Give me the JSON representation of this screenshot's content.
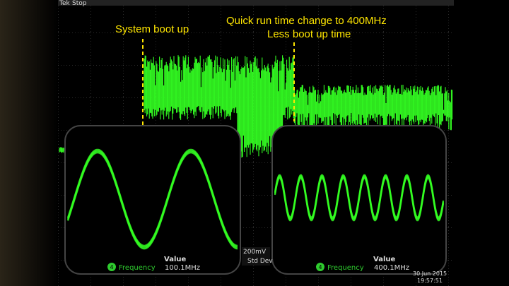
{
  "header": {
    "brand": "Tek",
    "status": "Stop"
  },
  "annotations": {
    "boot": "System boot up",
    "change": "Quick run time change to 400MHz",
    "less": "Less boot up time"
  },
  "insets": [
    {
      "heading": "Value",
      "channel": "4",
      "measure": "Frequency",
      "reading": "100.1MHz"
    },
    {
      "heading": "Value",
      "channel": "4",
      "measure": "Frequency",
      "reading": "400.1MHz"
    }
  ],
  "readouts": {
    "scale": "200mV",
    "stat": "Std Dev",
    "date": "30 Jun 2015",
    "time": "19:57:51"
  }
}
